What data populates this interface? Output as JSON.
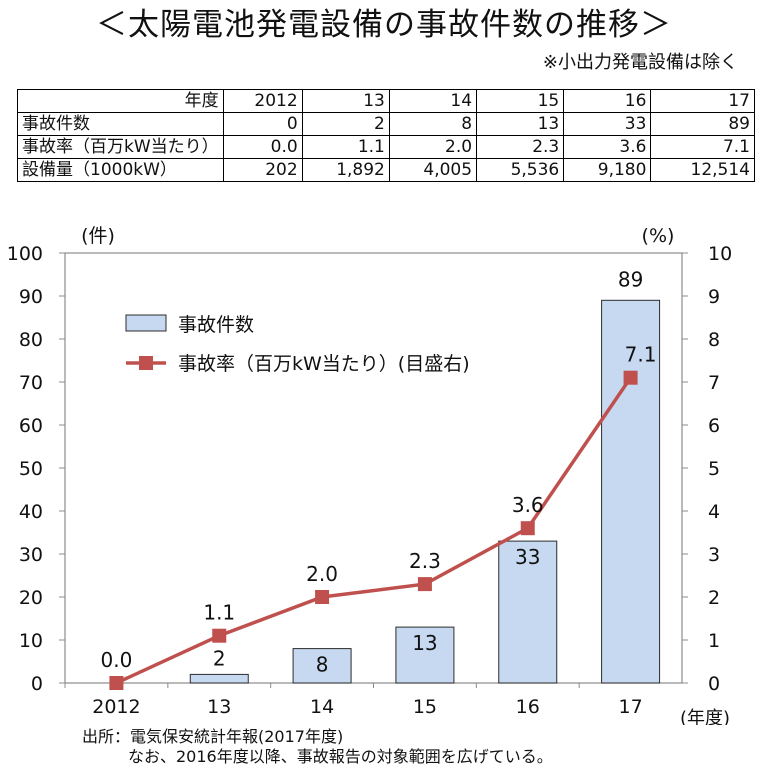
{
  "title": "＜太陽電池発電設備の事故件数の推移＞",
  "note": "※小出力発電設備は除く",
  "table": {
    "header_label": "年度",
    "years": [
      "2012",
      "13",
      "14",
      "15",
      "16",
      "17"
    ],
    "rows": [
      {
        "label": "事故件数",
        "values": [
          "0",
          "2",
          "8",
          "13",
          "33",
          "89"
        ]
      },
      {
        "label": "事故率（百万kW当たり）",
        "values": [
          "0.0",
          "1.1",
          "2.0",
          "2.3",
          "3.6",
          "7.1"
        ]
      },
      {
        "label": "設備量（1000kW）",
        "values": [
          "202",
          "1,892",
          "4,005",
          "5,536",
          "9,180",
          "12,514"
        ]
      }
    ]
  },
  "chart_data": {
    "type": "bar",
    "categories": [
      "2012",
      "13",
      "14",
      "15",
      "16",
      "17"
    ],
    "series": [
      {
        "name": "事故件数",
        "type": "bar",
        "axis": "left",
        "values": [
          0,
          2,
          8,
          13,
          33,
          89
        ],
        "color": "#c6d9f1"
      },
      {
        "name": "事故率（百万kW当たり）(目盛右)",
        "type": "line",
        "axis": "right",
        "values": [
          0.0,
          1.1,
          2.0,
          2.3,
          3.6,
          7.1
        ],
        "color": "#c0504d"
      }
    ],
    "bar_labels": [
      "",
      "2",
      "8",
      "13",
      "33",
      "89"
    ],
    "line_labels": [
      "0.0",
      "1.1",
      "2.0",
      "2.3",
      "3.6",
      "7.1"
    ],
    "ylabel_left": "(件)",
    "ylabel_right": "(%)",
    "xlabel": "(年度)",
    "ylim_left": [
      0,
      100
    ],
    "ylim_right": [
      0,
      10
    ],
    "yticks_left": [
      "0",
      "10",
      "20",
      "30",
      "40",
      "50",
      "60",
      "70",
      "80",
      "90",
      "100"
    ],
    "yticks_right": [
      "0",
      "1",
      "2",
      "3",
      "4",
      "5",
      "6",
      "7",
      "8",
      "9",
      "10"
    ],
    "grid": false,
    "legend_position": "top-left"
  },
  "source": {
    "line1": "出所：電気保安統計年報(2017年度)",
    "line2": "なお、2016年度以降、事故報告の対象範囲を広げている。"
  }
}
